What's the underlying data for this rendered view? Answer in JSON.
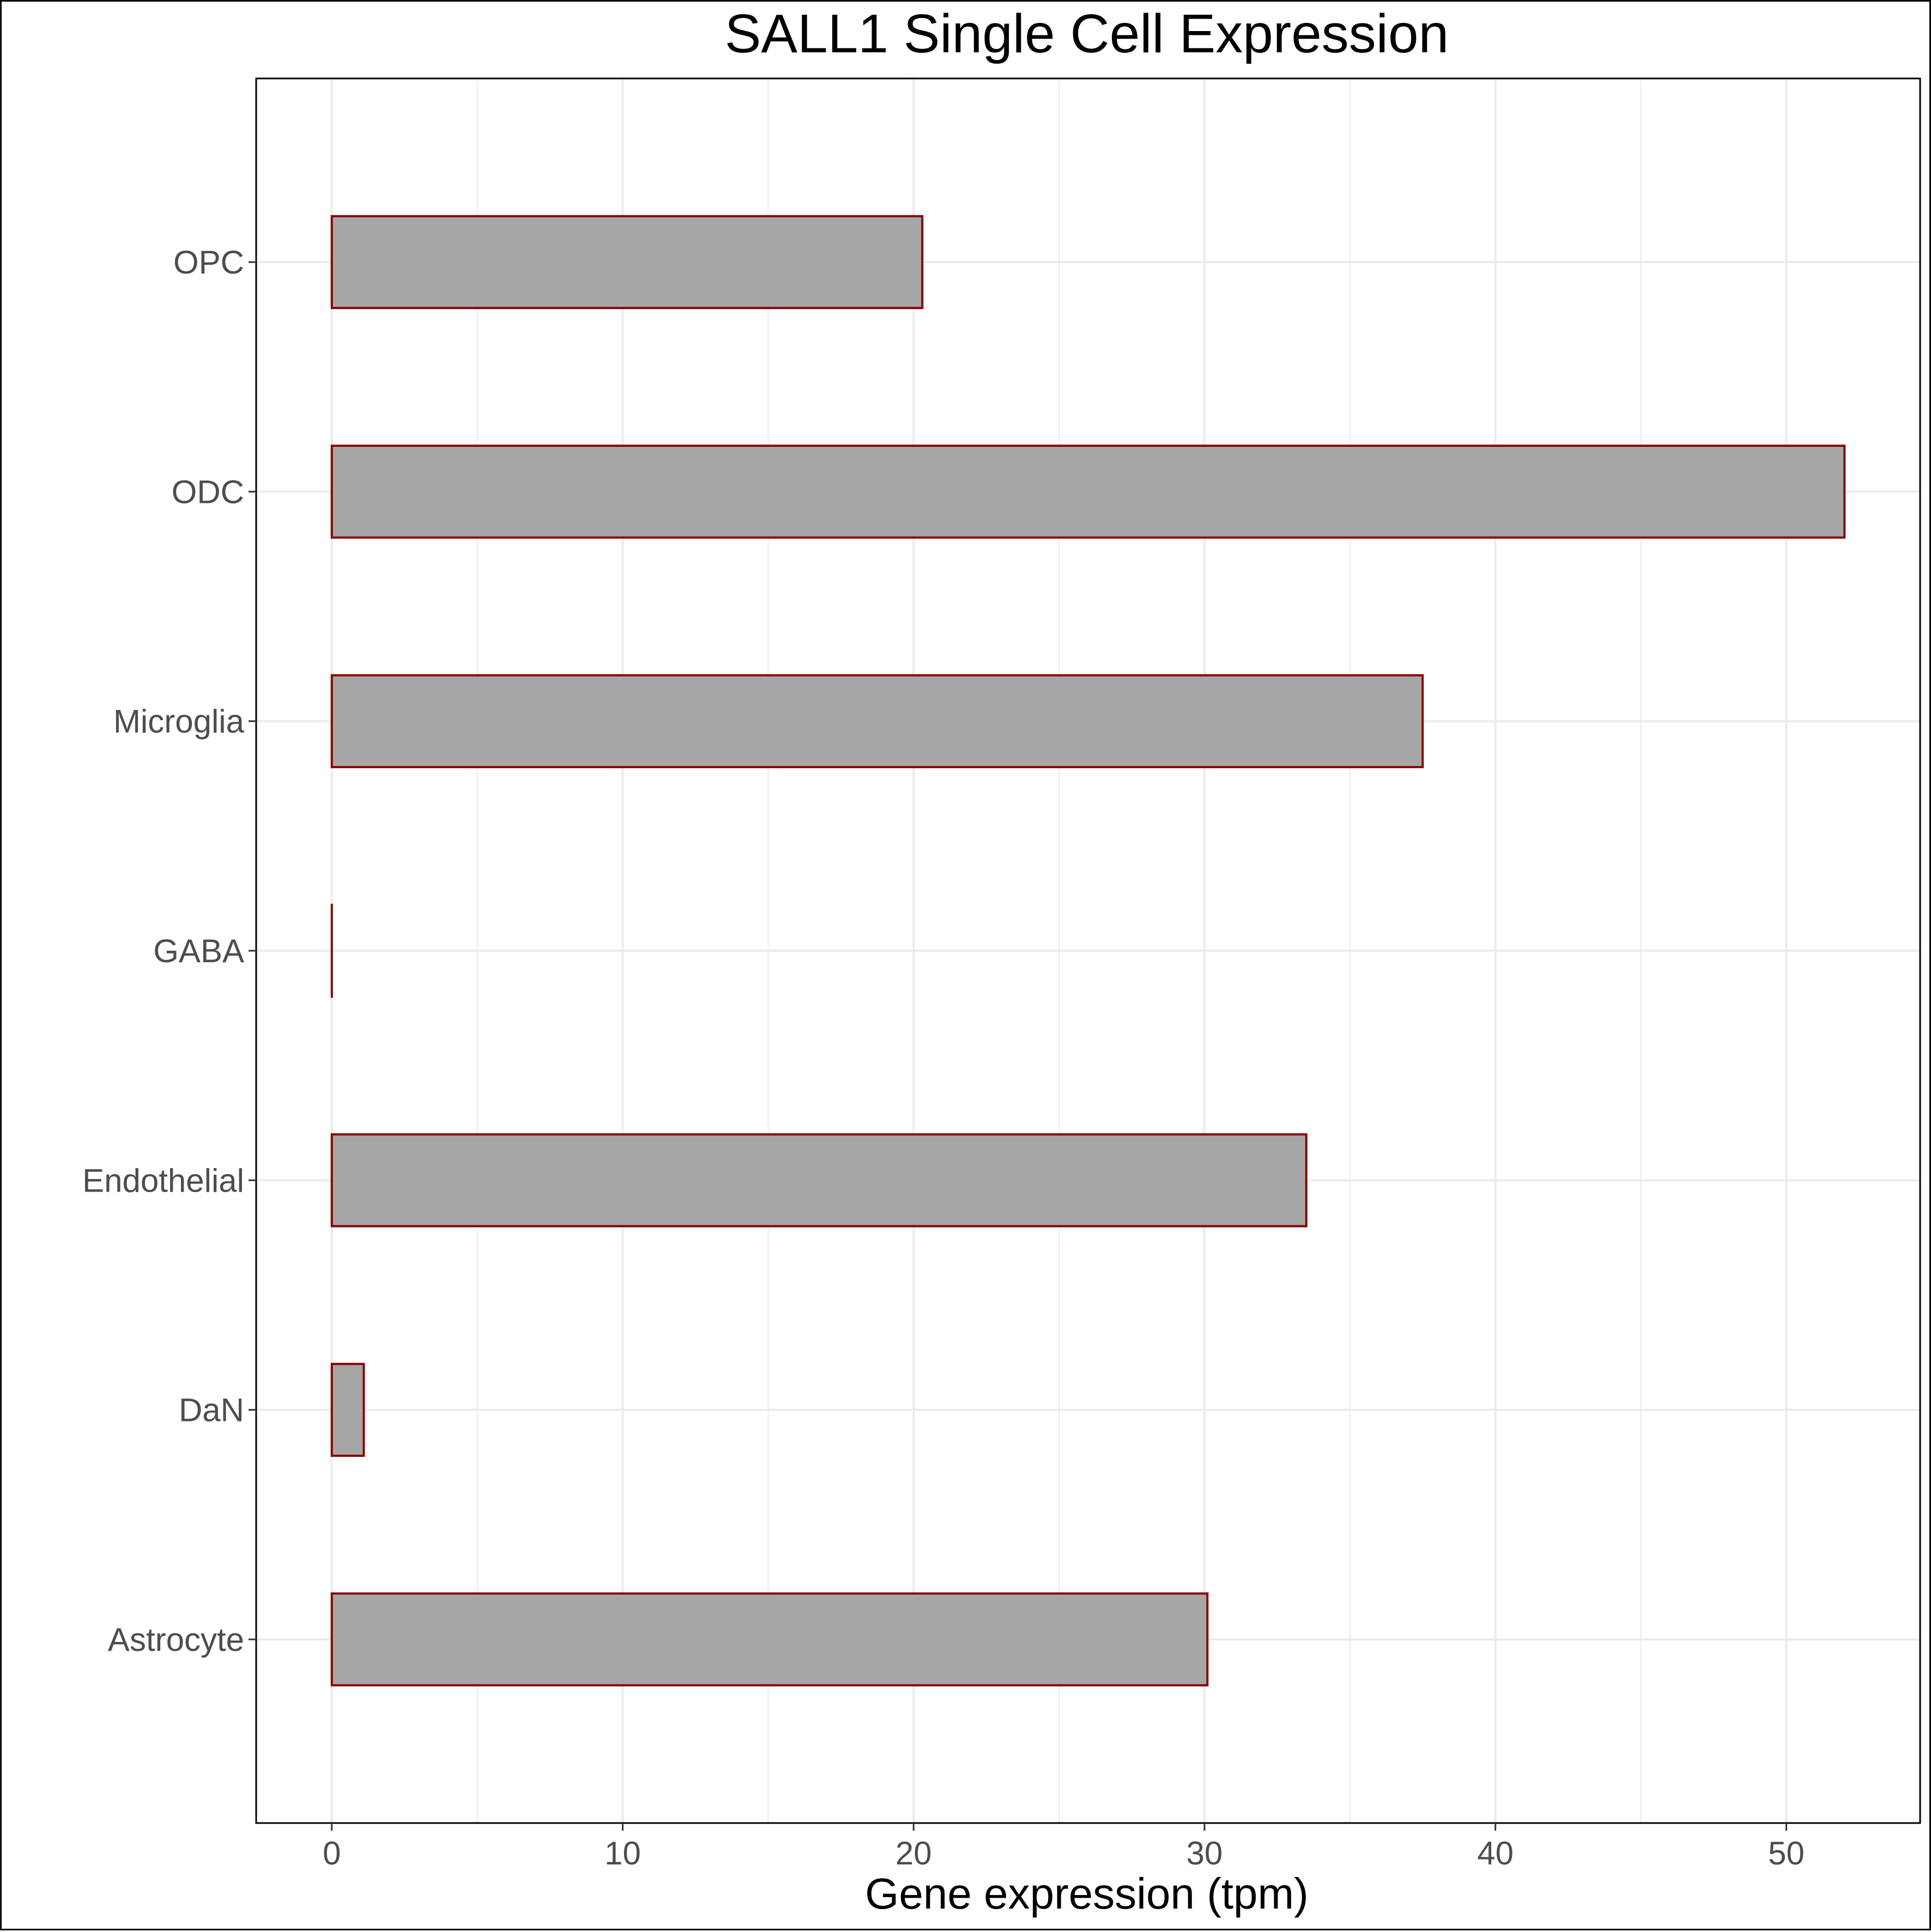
{
  "chart_data": {
    "type": "bar",
    "orientation": "horizontal",
    "title": "SALL1 Single Cell Expression",
    "xlabel": "Gene expression (tpm)",
    "ylabel": "",
    "categories": [
      "Astrocyte",
      "DaN",
      "Endothelial",
      "GABA",
      "Microglia",
      "ODC",
      "OPC"
    ],
    "values": [
      30.1,
      1.1,
      33.5,
      0.0,
      37.5,
      52.0,
      20.3
    ],
    "xlim": [
      -2.6,
      54.6
    ],
    "xticks": [
      0,
      10,
      20,
      30,
      40,
      50
    ],
    "xtick_labels": [
      "0",
      "10",
      "20",
      "30",
      "40",
      "50"
    ],
    "grid": true,
    "bar_fill": "#a6a6a6",
    "bar_outline": "#8b0000",
    "grid_color": "#ebebeb"
  }
}
